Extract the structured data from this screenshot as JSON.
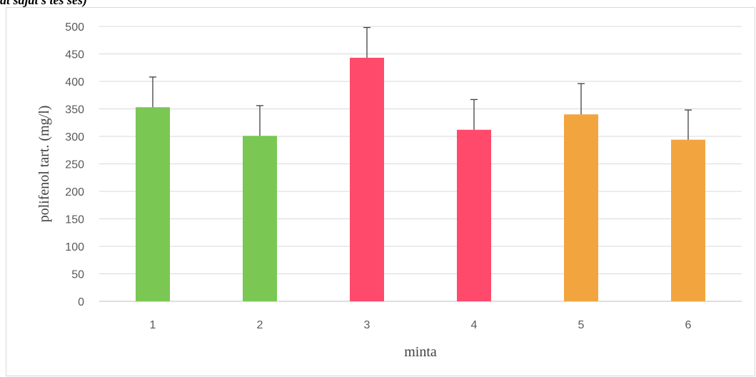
{
  "header_fragment": "at sajat s     tes  ses)",
  "chart_data": {
    "type": "bar",
    "title": "",
    "xlabel": "minta",
    "ylabel": "polifenol  tart. (mg/l)",
    "categories": [
      "1",
      "2",
      "3",
      "4",
      "5",
      "6"
    ],
    "values": [
      353,
      301,
      443,
      312,
      340,
      294
    ],
    "error_plus": [
      55,
      55,
      55,
      55,
      56,
      54
    ],
    "bar_colors": [
      "#7ac754",
      "#7ac754",
      "#ff4a6b",
      "#ff4a6b",
      "#f2a53f",
      "#f2a53f"
    ],
    "error_color": "#404040",
    "ylim": [
      0,
      500
    ],
    "yticks": [
      "0",
      "50",
      "100",
      "150",
      "200",
      "250",
      "300",
      "350",
      "400",
      "450",
      "500"
    ],
    "grid": true,
    "gridline_color": "#d9d9d9",
    "legend": "none"
  }
}
